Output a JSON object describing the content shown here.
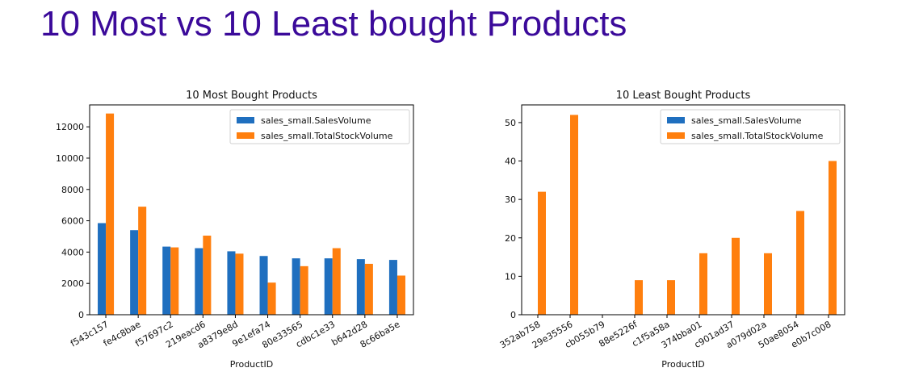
{
  "page": {
    "title": "10 Most vs 10 Least bought Products"
  },
  "colors": {
    "sales": "#1f6fbf",
    "stock": "#ff7f0e"
  },
  "chart_data": [
    {
      "type": "bar",
      "title": "10 Most Bought Products",
      "xlabel": "ProductID",
      "ylabel": "",
      "ylim": [
        0,
        13400
      ],
      "yticks": [
        0,
        2000,
        4000,
        6000,
        8000,
        10000,
        12000
      ],
      "categories": [
        "f543c157",
        "fe4c8bae",
        "f57697c2",
        "219eacd6",
        "a8379e8d",
        "9e1efa74",
        "80e33565",
        "cdbc1e33",
        "b642d28",
        "8c66ba5e"
      ],
      "series": [
        {
          "name": "sales_small.SalesVolume",
          "values": [
            5850,
            5400,
            4350,
            4250,
            4050,
            3750,
            3600,
            3600,
            3550,
            3500
          ]
        },
        {
          "name": "sales_small.TotalStockVolume",
          "values": [
            12850,
            6900,
            4300,
            5050,
            3900,
            2050,
            3100,
            4250,
            3250,
            2500
          ]
        }
      ],
      "legend": "top-right",
      "grid": false
    },
    {
      "type": "bar",
      "title": "10 Least Bought Products",
      "xlabel": "ProductID",
      "ylabel": "",
      "ylim": [
        0,
        54.6
      ],
      "yticks": [
        0,
        10,
        20,
        30,
        40,
        50
      ],
      "categories": [
        "352ab758",
        "29e35556",
        "cb055b79",
        "88e5226f",
        "c1f5a58a",
        "374bba01",
        "c901ad37",
        "a079d02a",
        "50ae8054",
        "e0b7c008"
      ],
      "series": [
        {
          "name": "sales_small.SalesVolume",
          "values": [
            0,
            0,
            0,
            0,
            0,
            0,
            0,
            0,
            0,
            0
          ]
        },
        {
          "name": "sales_small.TotalStockVolume",
          "values": [
            32,
            52,
            0,
            9,
            9,
            16,
            20,
            16,
            27,
            40
          ]
        }
      ],
      "legend": "top-right",
      "grid": false
    }
  ]
}
